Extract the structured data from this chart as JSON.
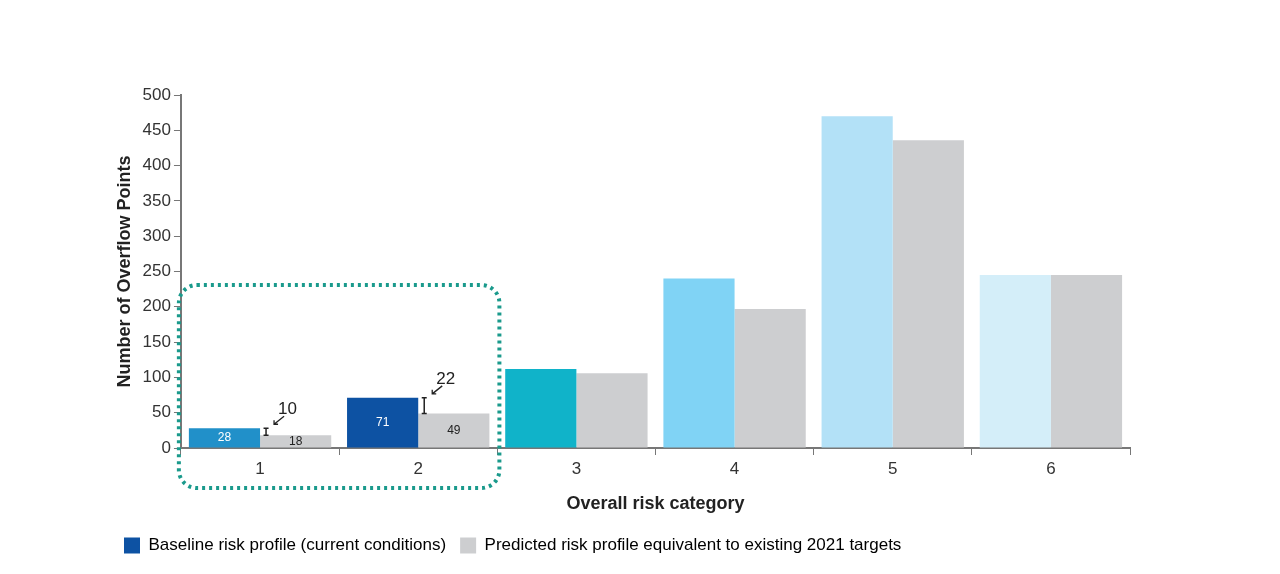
{
  "chart_data": {
    "type": "bar",
    "xlabel": "Overall risk category",
    "ylabel": "Number of Overflow Points",
    "categories": [
      "1",
      "2",
      "3",
      "4",
      "5",
      "6"
    ],
    "series": [
      {
        "name": "Baseline risk profile (current conditions)",
        "color": "#0d52a3",
        "colors": [
          "#2190c9",
          "#0d52a3",
          "#10b3c9",
          "#80d3f5",
          "#b3e1f7",
          "#d4eef9"
        ],
        "values": [
          28,
          71,
          112,
          240,
          470,
          245
        ],
        "value_labels": [
          "28",
          "71",
          null,
          null,
          null,
          null
        ]
      },
      {
        "name": "Predicted risk profile equivalent to existing 2021 targets",
        "color": "#cdced0",
        "values": [
          18,
          49,
          106,
          197,
          436,
          245
        ],
        "value_labels": [
          "18",
          "49",
          null,
          null,
          null,
          null
        ]
      }
    ],
    "annotations": [
      {
        "text": "10",
        "x": "1",
        "y": 28
      },
      {
        "text": "22",
        "x": "2",
        "y": 71
      }
    ],
    "ylim": [
      0,
      500
    ],
    "yticks": [
      0,
      50,
      100,
      150,
      200,
      250,
      300,
      350,
      400,
      450,
      500
    ],
    "grid": false,
    "legend": "bottom"
  }
}
